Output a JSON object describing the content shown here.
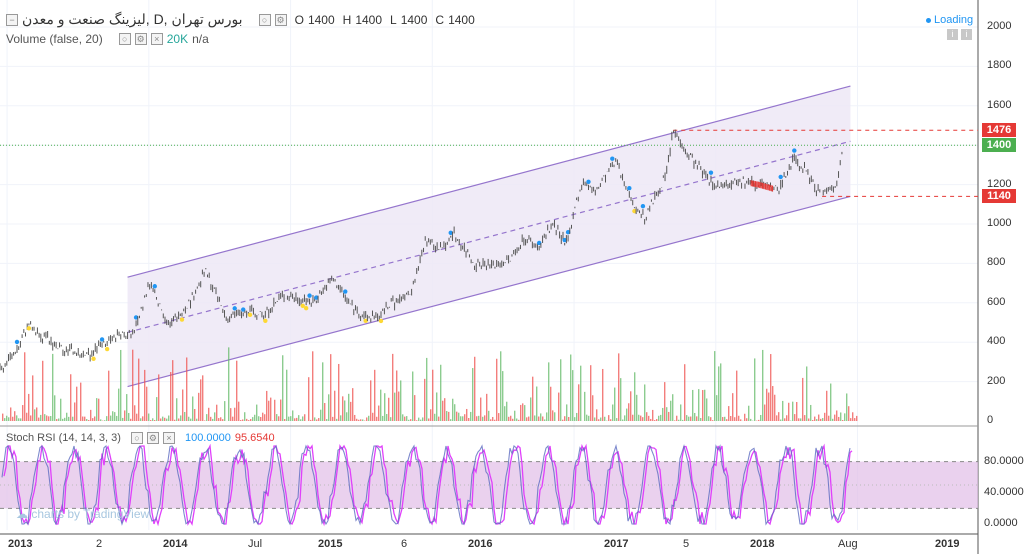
{
  "header": {
    "symbol_title": "لیزینگ صنعت و معدن, D, بورس تهران",
    "ohlc": [
      {
        "key": "O",
        "value": "1400"
      },
      {
        "key": "H",
        "value": "1400"
      },
      {
        "key": "L",
        "value": "1400"
      },
      {
        "key": "C",
        "value": "1400"
      }
    ],
    "volume_label": "Volume (false, 20)",
    "volume_value": "20K",
    "volume_na": "n/a",
    "loading_text": "Loading",
    "stoch_label": "Stoch RSI (14, 14, 3, 3)",
    "stoch_k": "100.0000",
    "stoch_d": "95.6540",
    "watermark": "charts by TradingView"
  },
  "price_axis": [
    "2000",
    "1800",
    "1600",
    "1400",
    "1200",
    "1000",
    "800",
    "600",
    "400",
    "200",
    "0"
  ],
  "stoch_axis": [
    "80.0000",
    "40.0000",
    "0.0000"
  ],
  "price_tags": [
    {
      "label": "1476",
      "color": "#e53935",
      "value": 1476
    },
    {
      "label": "1400",
      "color": "#4caf50",
      "value": 1400
    },
    {
      "label": "1140",
      "color": "#e53935",
      "value": 1140
    }
  ],
  "time_axis": [
    {
      "label": "2013",
      "bold": true
    },
    {
      "label": "2",
      "bold": false
    },
    {
      "label": "2014",
      "bold": true
    },
    {
      "label": "Jul",
      "bold": false
    },
    {
      "label": "2015",
      "bold": true
    },
    {
      "label": "6",
      "bold": false
    },
    {
      "label": "2016",
      "bold": true
    },
    {
      "label": "2017",
      "bold": true
    },
    {
      "label": "5",
      "bold": false
    },
    {
      "label": "2018",
      "bold": true
    },
    {
      "label": "Aug",
      "bold": false
    },
    {
      "label": "2019",
      "bold": true
    }
  ],
  "colors": {
    "up": "#26a69a",
    "down": "#ef5350",
    "candle": "#555555",
    "channel": "#9575cd",
    "channel_fill": "#ede7f6",
    "stoch_k": "#2196f3",
    "stoch_d": "#e040fb",
    "stoch_band": "#e1bee7"
  },
  "chart_data": {
    "type": "line",
    "price_series": [
      {
        "t": 2013.0,
        "p": 250
      },
      {
        "t": 2013.1,
        "p": 350
      },
      {
        "t": 2013.2,
        "p": 490
      },
      {
        "t": 2013.4,
        "p": 380
      },
      {
        "t": 2013.6,
        "p": 330
      },
      {
        "t": 2013.8,
        "p": 420
      },
      {
        "t": 2013.95,
        "p": 450
      },
      {
        "t": 2014.05,
        "p": 700
      },
      {
        "t": 2014.2,
        "p": 480
      },
      {
        "t": 2014.35,
        "p": 620
      },
      {
        "t": 2014.45,
        "p": 760
      },
      {
        "t": 2014.6,
        "p": 520
      },
      {
        "t": 2014.75,
        "p": 560
      },
      {
        "t": 2014.85,
        "p": 530
      },
      {
        "t": 2015.0,
        "p": 640
      },
      {
        "t": 2015.2,
        "p": 600
      },
      {
        "t": 2015.35,
        "p": 720
      },
      {
        "t": 2015.5,
        "p": 560
      },
      {
        "t": 2015.65,
        "p": 520
      },
      {
        "t": 2015.75,
        "p": 590
      },
      {
        "t": 2015.9,
        "p": 640
      },
      {
        "t": 2016.0,
        "p": 920
      },
      {
        "t": 2016.1,
        "p": 870
      },
      {
        "t": 2016.2,
        "p": 950
      },
      {
        "t": 2016.35,
        "p": 800
      },
      {
        "t": 2016.5,
        "p": 790
      },
      {
        "t": 2016.6,
        "p": 820
      },
      {
        "t": 2016.7,
        "p": 930
      },
      {
        "t": 2016.8,
        "p": 880
      },
      {
        "t": 2016.9,
        "p": 1000
      },
      {
        "t": 2017.0,
        "p": 900
      },
      {
        "t": 2017.1,
        "p": 1210
      },
      {
        "t": 2017.2,
        "p": 1160
      },
      {
        "t": 2017.35,
        "p": 1330
      },
      {
        "t": 2017.45,
        "p": 1110
      },
      {
        "t": 2017.55,
        "p": 1030
      },
      {
        "t": 2017.7,
        "p": 1250
      },
      {
        "t": 2017.75,
        "p": 1476
      },
      {
        "t": 2017.85,
        "p": 1360
      },
      {
        "t": 2017.95,
        "p": 1270
      },
      {
        "t": 2018.05,
        "p": 1190
      },
      {
        "t": 2018.2,
        "p": 1220
      },
      {
        "t": 2018.35,
        "p": 1200
      },
      {
        "t": 2018.5,
        "p": 1170
      },
      {
        "t": 2018.6,
        "p": 1340
      },
      {
        "t": 2018.7,
        "p": 1250
      },
      {
        "t": 2018.8,
        "p": 1140
      },
      {
        "t": 2018.9,
        "p": 1200
      },
      {
        "t": 2018.95,
        "p": 1400
      }
    ],
    "channel": {
      "upper": [
        {
          "t": 2013.9,
          "p": 730
        },
        {
          "t": 2019.0,
          "p": 1700
        }
      ],
      "middle": [
        {
          "t": 2013.9,
          "p": 450
        },
        {
          "t": 2019.0,
          "p": 1420
        }
      ],
      "lower": [
        {
          "t": 2013.9,
          "p": 175
        },
        {
          "t": 2019.0,
          "p": 1140
        }
      ]
    },
    "y_range": [
      0,
      2000
    ],
    "x_range": [
      2013.0,
      2019.9
    ],
    "stoch_range": [
      0,
      100
    ],
    "stoch_bands": [
      20,
      80
    ]
  }
}
